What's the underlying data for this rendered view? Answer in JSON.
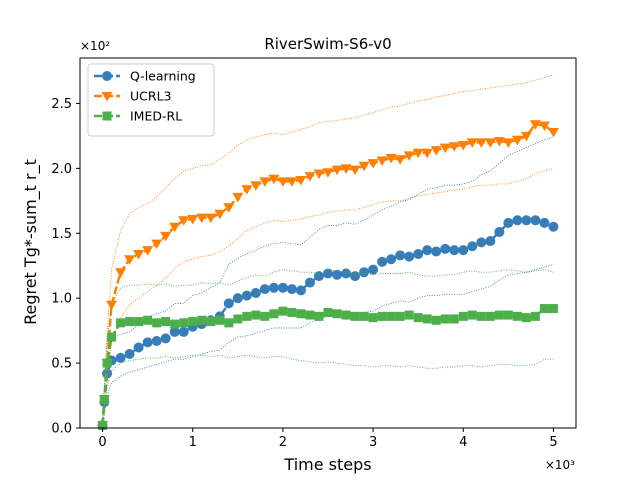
{
  "chart_data": {
    "type": "line",
    "title": "RiverSwim-S6-v0",
    "xlabel": "Time steps",
    "ylabel": "Regret Tg*-sum_t r_t",
    "x_multiplier": "×10³",
    "y_multiplier": "×10²",
    "xlim": [
      -0.25,
      5.25
    ],
    "ylim": [
      0,
      2.85
    ],
    "x_ticks": [
      0,
      1,
      2,
      3,
      4,
      5
    ],
    "x_tick_labels": [
      "0",
      "1",
      "2",
      "3",
      "4",
      "5"
    ],
    "y_ticks": [
      0,
      0.5,
      1.0,
      1.5,
      2.0,
      2.5
    ],
    "y_tick_labels": [
      "0.0",
      "0.5",
      "1.0",
      "1.5",
      "2.0",
      "2.5"
    ],
    "legend_position": "upper-left",
    "grid": false,
    "series": [
      {
        "name": "Q-learning",
        "color": "#377eb8",
        "marker": "circle",
        "x": [
          0,
          0.02,
          0.05,
          0.1,
          0.2,
          0.3,
          0.4,
          0.5,
          0.6,
          0.7,
          0.8,
          0.9,
          1.0,
          1.1,
          1.2,
          1.3,
          1.4,
          1.5,
          1.6,
          1.7,
          1.8,
          1.9,
          2.0,
          2.1,
          2.2,
          2.3,
          2.4,
          2.5,
          2.6,
          2.7,
          2.8,
          2.9,
          3.0,
          3.1,
          3.2,
          3.3,
          3.4,
          3.5,
          3.6,
          3.7,
          3.8,
          3.9,
          4.0,
          4.1,
          4.2,
          4.3,
          4.4,
          4.5,
          4.6,
          4.7,
          4.8,
          4.9,
          5.0
        ],
        "mean": [
          0.02,
          0.2,
          0.42,
          0.52,
          0.54,
          0.57,
          0.62,
          0.66,
          0.67,
          0.69,
          0.74,
          0.74,
          0.78,
          0.8,
          0.83,
          0.86,
          0.96,
          1.0,
          1.02,
          1.04,
          1.07,
          1.08,
          1.08,
          1.07,
          1.06,
          1.12,
          1.17,
          1.19,
          1.18,
          1.19,
          1.17,
          1.2,
          1.22,
          1.28,
          1.3,
          1.33,
          1.32,
          1.34,
          1.37,
          1.36,
          1.38,
          1.37,
          1.37,
          1.4,
          1.43,
          1.44,
          1.51,
          1.58,
          1.6,
          1.6,
          1.6,
          1.58,
          1.55
        ],
        "lower": [
          0.0,
          0.1,
          0.25,
          0.35,
          0.4,
          0.43,
          0.45,
          0.47,
          0.49,
          0.51,
          0.53,
          0.53,
          0.55,
          0.57,
          0.59,
          0.6,
          0.66,
          0.7,
          0.71,
          0.73,
          0.75,
          0.77,
          0.77,
          0.77,
          0.77,
          0.81,
          0.84,
          0.86,
          0.86,
          0.87,
          0.86,
          0.89,
          0.9,
          0.94,
          0.96,
          0.98,
          0.97,
          1.0,
          1.02,
          1.02,
          1.03,
          1.03,
          1.03,
          1.05,
          1.07,
          1.09,
          1.14,
          1.18,
          1.19,
          1.2,
          1.22,
          1.24,
          1.26
        ],
        "upper": [
          0.05,
          0.3,
          0.58,
          0.69,
          0.72,
          0.74,
          0.8,
          0.85,
          0.88,
          0.9,
          0.96,
          0.96,
          1.02,
          1.04,
          1.08,
          1.12,
          1.26,
          1.31,
          1.34,
          1.37,
          1.4,
          1.42,
          1.43,
          1.42,
          1.41,
          1.47,
          1.53,
          1.56,
          1.56,
          1.58,
          1.57,
          1.6,
          1.64,
          1.68,
          1.71,
          1.74,
          1.76,
          1.8,
          1.84,
          1.85,
          1.87,
          1.87,
          1.88,
          1.9,
          1.95,
          1.98,
          2.04,
          2.1,
          2.13,
          2.16,
          2.19,
          2.22,
          2.24
        ]
      },
      {
        "name": "UCRL3",
        "color": "#ff7f00",
        "marker": "triangle-down",
        "x": [
          0,
          0.02,
          0.05,
          0.1,
          0.2,
          0.3,
          0.4,
          0.5,
          0.6,
          0.7,
          0.8,
          0.9,
          1.0,
          1.1,
          1.2,
          1.3,
          1.4,
          1.5,
          1.6,
          1.7,
          1.8,
          1.9,
          2.0,
          2.1,
          2.2,
          2.3,
          2.4,
          2.5,
          2.6,
          2.7,
          2.8,
          2.9,
          3.0,
          3.1,
          3.2,
          3.3,
          3.4,
          3.5,
          3.6,
          3.7,
          3.8,
          3.9,
          4.0,
          4.1,
          4.2,
          4.3,
          4.4,
          4.5,
          4.6,
          4.7,
          4.8,
          4.9,
          5.0
        ],
        "mean": [
          0.02,
          0.22,
          0.5,
          0.95,
          1.2,
          1.3,
          1.34,
          1.37,
          1.42,
          1.48,
          1.55,
          1.6,
          1.61,
          1.62,
          1.62,
          1.65,
          1.7,
          1.78,
          1.84,
          1.87,
          1.9,
          1.92,
          1.9,
          1.9,
          1.91,
          1.94,
          1.96,
          1.97,
          1.99,
          2.0,
          1.99,
          2.02,
          2.04,
          2.06,
          2.08,
          2.07,
          2.1,
          2.12,
          2.12,
          2.14,
          2.16,
          2.17,
          2.18,
          2.2,
          2.2,
          2.2,
          2.21,
          2.2,
          2.22,
          2.25,
          2.34,
          2.33,
          2.28
        ],
        "lower": [
          0.0,
          0.12,
          0.35,
          0.66,
          0.85,
          0.95,
          1.0,
          1.05,
          1.1,
          1.15,
          1.23,
          1.28,
          1.3,
          1.32,
          1.33,
          1.36,
          1.4,
          1.46,
          1.52,
          1.55,
          1.58,
          1.6,
          1.59,
          1.6,
          1.61,
          1.63,
          1.64,
          1.66,
          1.67,
          1.68,
          1.68,
          1.7,
          1.72,
          1.74,
          1.75,
          1.75,
          1.77,
          1.79,
          1.8,
          1.81,
          1.82,
          1.83,
          1.84,
          1.86,
          1.87,
          1.87,
          1.88,
          1.88,
          1.9,
          1.92,
          1.96,
          1.98,
          2.0
        ],
        "upper": [
          0.05,
          0.33,
          0.72,
          1.22,
          1.52,
          1.65,
          1.7,
          1.73,
          1.78,
          1.85,
          1.92,
          1.98,
          2.0,
          2.02,
          2.03,
          2.07,
          2.12,
          2.18,
          2.22,
          2.24,
          2.26,
          2.27,
          2.26,
          2.28,
          2.3,
          2.32,
          2.35,
          2.36,
          2.37,
          2.38,
          2.39,
          2.41,
          2.43,
          2.45,
          2.47,
          2.48,
          2.5,
          2.52,
          2.53,
          2.55,
          2.56,
          2.58,
          2.59,
          2.6,
          2.61,
          2.62,
          2.63,
          2.64,
          2.65,
          2.66,
          2.68,
          2.7,
          2.72
        ]
      },
      {
        "name": "IMED-RL",
        "color": "#4daf4a",
        "marker": "square",
        "x": [
          0,
          0.02,
          0.05,
          0.1,
          0.2,
          0.3,
          0.4,
          0.5,
          0.6,
          0.7,
          0.8,
          0.9,
          1.0,
          1.1,
          1.2,
          1.3,
          1.4,
          1.5,
          1.6,
          1.7,
          1.8,
          1.9,
          2.0,
          2.1,
          2.2,
          2.3,
          2.4,
          2.5,
          2.6,
          2.7,
          2.8,
          2.9,
          3.0,
          3.1,
          3.2,
          3.3,
          3.4,
          3.5,
          3.6,
          3.7,
          3.8,
          3.9,
          4.0,
          4.1,
          4.2,
          4.3,
          4.4,
          4.5,
          4.6,
          4.7,
          4.8,
          4.9,
          5.0
        ],
        "mean": [
          0.02,
          0.22,
          0.5,
          0.7,
          0.81,
          0.82,
          0.82,
          0.83,
          0.81,
          0.82,
          0.8,
          0.81,
          0.82,
          0.83,
          0.82,
          0.83,
          0.81,
          0.84,
          0.86,
          0.87,
          0.86,
          0.88,
          0.9,
          0.89,
          0.88,
          0.87,
          0.86,
          0.89,
          0.88,
          0.87,
          0.86,
          0.86,
          0.85,
          0.86,
          0.86,
          0.86,
          0.87,
          0.85,
          0.84,
          0.83,
          0.84,
          0.84,
          0.86,
          0.87,
          0.86,
          0.86,
          0.87,
          0.87,
          0.86,
          0.85,
          0.86,
          0.92,
          0.92
        ],
        "lower": [
          0.0,
          0.14,
          0.32,
          0.44,
          0.5,
          0.52,
          0.53,
          0.54,
          0.54,
          0.55,
          0.54,
          0.55,
          0.56,
          0.56,
          0.55,
          0.56,
          0.54,
          0.55,
          0.56,
          0.55,
          0.54,
          0.55,
          0.55,
          0.53,
          0.52,
          0.51,
          0.5,
          0.51,
          0.5,
          0.49,
          0.48,
          0.48,
          0.47,
          0.48,
          0.48,
          0.47,
          0.48,
          0.47,
          0.46,
          0.46,
          0.47,
          0.47,
          0.48,
          0.48,
          0.47,
          0.48,
          0.49,
          0.49,
          0.48,
          0.48,
          0.49,
          0.53,
          0.53
        ],
        "upper": [
          0.05,
          0.3,
          0.68,
          0.95,
          1.08,
          1.1,
          1.1,
          1.11,
          1.1,
          1.11,
          1.09,
          1.1,
          1.1,
          1.12,
          1.11,
          1.12,
          1.1,
          1.13,
          1.16,
          1.18,
          1.17,
          1.2,
          1.22,
          1.21,
          1.2,
          1.2,
          1.19,
          1.22,
          1.21,
          1.2,
          1.19,
          1.19,
          1.18,
          1.19,
          1.19,
          1.19,
          1.2,
          1.18,
          1.17,
          1.17,
          1.18,
          1.18,
          1.2,
          1.21,
          1.2,
          1.2,
          1.21,
          1.22,
          1.21,
          1.2,
          1.21,
          1.22,
          1.2
        ]
      }
    ]
  }
}
